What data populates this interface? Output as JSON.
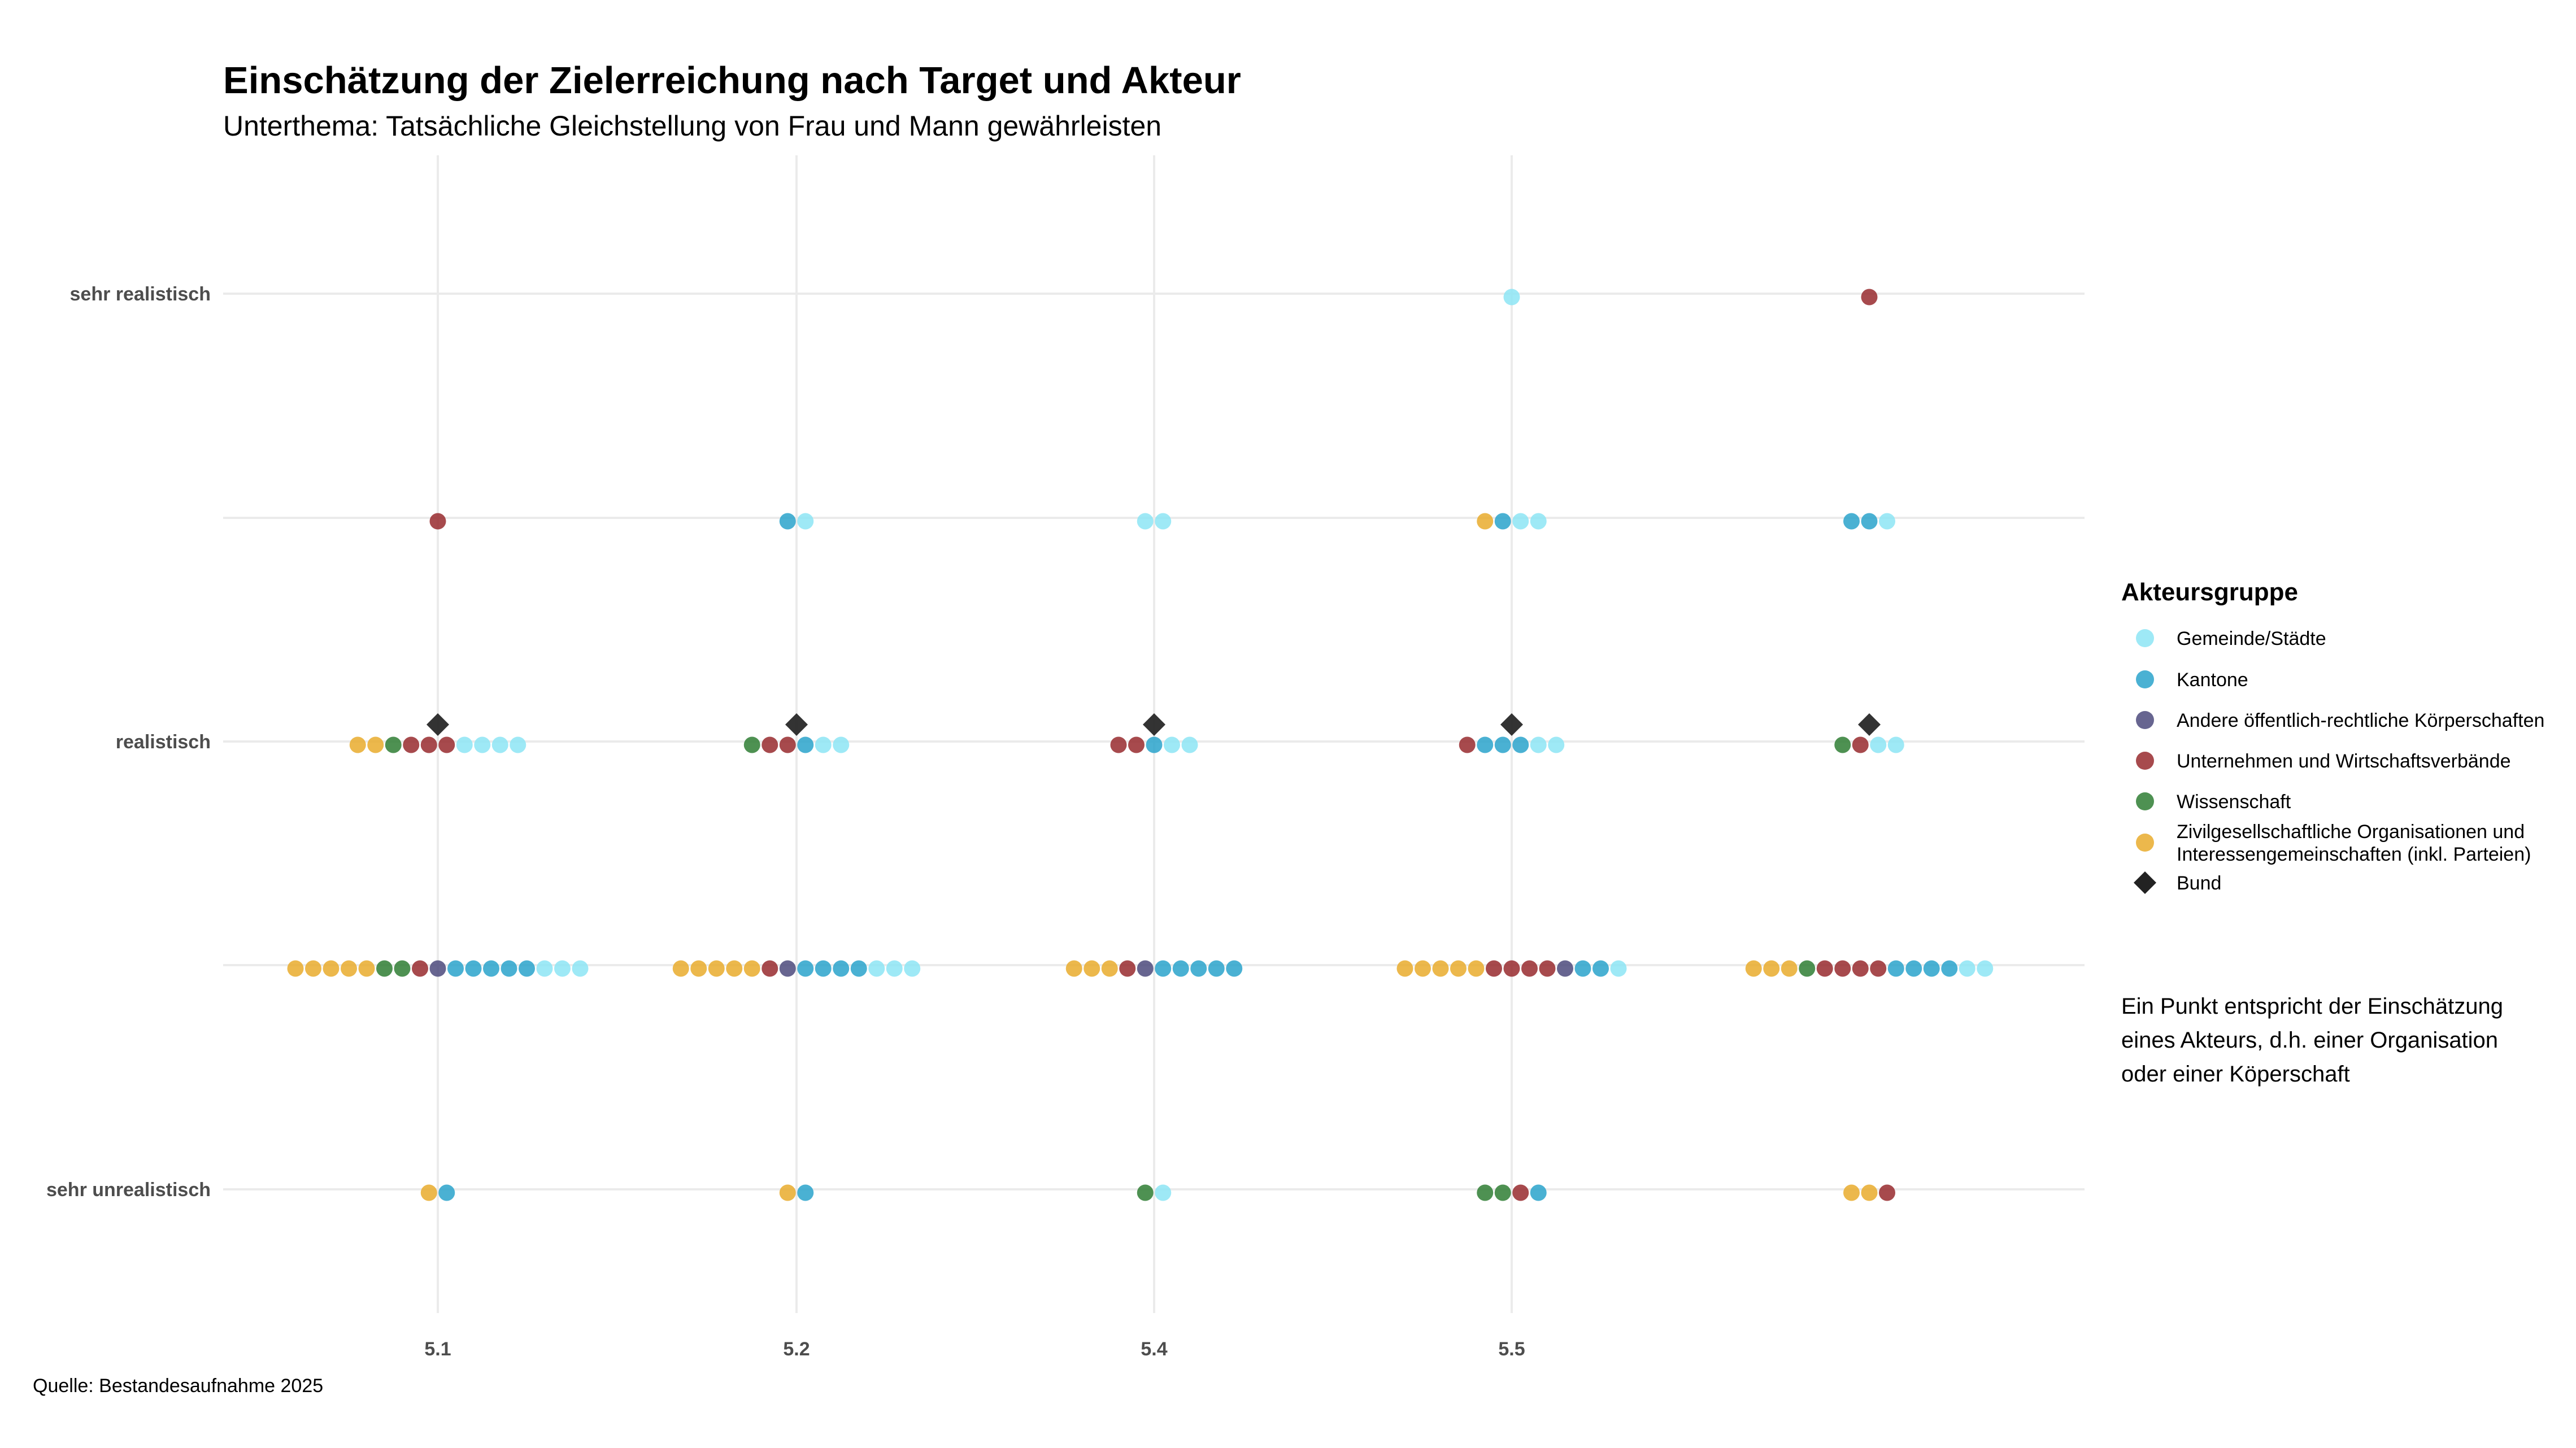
{
  "chart_data": {
    "type": "scatter",
    "title": "Einschätzung der Zielerreichung nach Target und Akteur",
    "subtitle": "Unterthema: Tatsächliche Gleichstellung von Frau und Mann gewährleisten",
    "caption": "Quelle: Bestandesaufnahme 2025",
    "note_lines": [
      "Ein Punkt entspricht der Einschätzung",
      "eines Akteurs, d.h. einer Organisation",
      "oder einer Köperschaft"
    ],
    "x_categories": [
      "5.1",
      "5.2",
      "5.4",
      "5.5",
      ""
    ],
    "y_levels": [
      "sehr realistisch",
      "",
      "realistisch",
      "",
      "sehr unrealistisch"
    ],
    "legend_title": "Akteursgruppe",
    "groups": [
      {
        "name": "Gemeinde/Städte",
        "color": "#8de5f5",
        "shape": "circle"
      },
      {
        "name": "Kantone",
        "color": "#2aa3cb",
        "shape": "circle"
      },
      {
        "name": "Andere öffentlich-rechtliche Körperschaften",
        "color": "#4c4a7c",
        "shape": "circle"
      },
      {
        "name": "Unternehmen und Wirtschaftsverbände",
        "color": "#982a2e",
        "shape": "circle"
      },
      {
        "name": "Wissenschaft",
        "color": "#2f7e34",
        "shape": "circle"
      },
      {
        "name": "Zivilgesellschaftliche Organisationen und Interessengemeinschaften (inkl. Parteien)",
        "color": "#e9ac2d",
        "shape": "circle"
      },
      {
        "name": "Bund",
        "color": "#222222",
        "shape": "diamond"
      }
    ],
    "rows": [
      {
        "x": 0,
        "y": 0,
        "dots": []
      },
      {
        "x": 1,
        "y": 0,
        "dots": []
      },
      {
        "x": 2,
        "y": 0,
        "dots": []
      },
      {
        "x": 3,
        "y": 0,
        "dots": [
          "Gemeinde/Städte"
        ]
      },
      {
        "x": 4,
        "y": 0,
        "dots": [
          "Unternehmen und Wirtschaftsverbände"
        ]
      },
      {
        "x": 0,
        "y": 1,
        "dots": [
          "Unternehmen und Wirtschaftsverbände"
        ]
      },
      {
        "x": 1,
        "y": 1,
        "dots": [
          "Kantone",
          "Gemeinde/Städte"
        ]
      },
      {
        "x": 2,
        "y": 1,
        "dots": [
          "Gemeinde/Städte",
          "Gemeinde/Städte"
        ]
      },
      {
        "x": 3,
        "y": 1,
        "dots": [
          "Zivilgesellschaftliche Organisationen und Interessengemeinschaften (inkl. Parteien)",
          "Kantone",
          "Gemeinde/Städte",
          "Gemeinde/Städte"
        ]
      },
      {
        "x": 4,
        "y": 1,
        "dots": [
          "Kantone",
          "Kantone",
          "Gemeinde/Städte"
        ]
      },
      {
        "x": 0,
        "y": 2,
        "dots": [
          "Zivilgesellschaftliche Organisationen und Interessengemeinschaften (inkl. Parteien)",
          "Zivilgesellschaftliche Organisationen und Interessengemeinschaften (inkl. Parteien)",
          "Wissenschaft",
          "Unternehmen und Wirtschaftsverbände",
          "Unternehmen und Wirtschaftsverbände",
          "Unternehmen und Wirtschaftsverbände",
          "Gemeinde/Städte",
          "Gemeinde/Städte",
          "Gemeinde/Städte",
          "Gemeinde/Städte"
        ]
      },
      {
        "x": 1,
        "y": 2,
        "dots": [
          "Wissenschaft",
          "Unternehmen und Wirtschaftsverbände",
          "Unternehmen und Wirtschaftsverbände",
          "Kantone",
          "Gemeinde/Städte",
          "Gemeinde/Städte"
        ]
      },
      {
        "x": 2,
        "y": 2,
        "dots": [
          "Unternehmen und Wirtschaftsverbände",
          "Unternehmen und Wirtschaftsverbände",
          "Kantone",
          "Gemeinde/Städte",
          "Gemeinde/Städte"
        ]
      },
      {
        "x": 3,
        "y": 2,
        "dots": [
          "Unternehmen und Wirtschaftsverbände",
          "Kantone",
          "Kantone",
          "Kantone",
          "Gemeinde/Städte",
          "Gemeinde/Städte"
        ]
      },
      {
        "x": 4,
        "y": 2,
        "dots": [
          "Wissenschaft",
          "Unternehmen und Wirtschaftsverbände",
          "Gemeinde/Städte",
          "Gemeinde/Städte"
        ]
      },
      {
        "x": 0,
        "y": 3,
        "dots": [
          "Zivilgesellschaftliche Organisationen und Interessengemeinschaften (inkl. Parteien)",
          "Zivilgesellschaftliche Organisationen und Interessengemeinschaften (inkl. Parteien)",
          "Zivilgesellschaftliche Organisationen und Interessengemeinschaften (inkl. Parteien)",
          "Zivilgesellschaftliche Organisationen und Interessengemeinschaften (inkl. Parteien)",
          "Zivilgesellschaftliche Organisationen und Interessengemeinschaften (inkl. Parteien)",
          "Wissenschaft",
          "Wissenschaft",
          "Unternehmen und Wirtschaftsverbände",
          "Andere öffentlich-rechtliche Körperschaften",
          "Kantone",
          "Kantone",
          "Kantone",
          "Kantone",
          "Kantone",
          "Gemeinde/Städte",
          "Gemeinde/Städte",
          "Gemeinde/Städte"
        ]
      },
      {
        "x": 1,
        "y": 3,
        "dots": [
          "Zivilgesellschaftliche Organisationen und Interessengemeinschaften (inkl. Parteien)",
          "Zivilgesellschaftliche Organisationen und Interessengemeinschaften (inkl. Parteien)",
          "Zivilgesellschaftliche Organisationen und Interessengemeinschaften (inkl. Parteien)",
          "Zivilgesellschaftliche Organisationen und Interessengemeinschaften (inkl. Parteien)",
          "Zivilgesellschaftliche Organisationen und Interessengemeinschaften (inkl. Parteien)",
          "Unternehmen und Wirtschaftsverbände",
          "Andere öffentlich-rechtliche Körperschaften",
          "Kantone",
          "Kantone",
          "Kantone",
          "Kantone",
          "Gemeinde/Städte",
          "Gemeinde/Städte",
          "Gemeinde/Städte"
        ]
      },
      {
        "x": 2,
        "y": 3,
        "dots": [
          "Zivilgesellschaftliche Organisationen und Interessengemeinschaften (inkl. Parteien)",
          "Zivilgesellschaftliche Organisationen und Interessengemeinschaften (inkl. Parteien)",
          "Zivilgesellschaftliche Organisationen und Interessengemeinschaften (inkl. Parteien)",
          "Unternehmen und Wirtschaftsverbände",
          "Andere öffentlich-rechtliche Körperschaften",
          "Kantone",
          "Kantone",
          "Kantone",
          "Kantone",
          "Kantone"
        ]
      },
      {
        "x": 3,
        "y": 3,
        "dots": [
          "Zivilgesellschaftliche Organisationen und Interessengemeinschaften (inkl. Parteien)",
          "Zivilgesellschaftliche Organisationen und Interessengemeinschaften (inkl. Parteien)",
          "Zivilgesellschaftliche Organisationen und Interessengemeinschaften (inkl. Parteien)",
          "Zivilgesellschaftliche Organisationen und Interessengemeinschaften (inkl. Parteien)",
          "Zivilgesellschaftliche Organisationen und Interessengemeinschaften (inkl. Parteien)",
          "Unternehmen und Wirtschaftsverbände",
          "Unternehmen und Wirtschaftsverbände",
          "Unternehmen und Wirtschaftsverbände",
          "Unternehmen und Wirtschaftsverbände",
          "Andere öffentlich-rechtliche Körperschaften",
          "Kantone",
          "Kantone",
          "Gemeinde/Städte"
        ]
      },
      {
        "x": 4,
        "y": 3,
        "dots": [
          "Zivilgesellschaftliche Organisationen und Interessengemeinschaften (inkl. Parteien)",
          "Zivilgesellschaftliche Organisationen und Interessengemeinschaften (inkl. Parteien)",
          "Zivilgesellschaftliche Organisationen und Interessengemeinschaften (inkl. Parteien)",
          "Wissenschaft",
          "Unternehmen und Wirtschaftsverbände",
          "Unternehmen und Wirtschaftsverbände",
          "Unternehmen und Wirtschaftsverbände",
          "Unternehmen und Wirtschaftsverbände",
          "Kantone",
          "Kantone",
          "Kantone",
          "Kantone",
          "Gemeinde/Städte",
          "Gemeinde/Städte"
        ]
      },
      {
        "x": 0,
        "y": 4,
        "dots": [
          "Zivilgesellschaftliche Organisationen und Interessengemeinschaften (inkl. Parteien)",
          "Kantone"
        ]
      },
      {
        "x": 1,
        "y": 4,
        "dots": [
          "Zivilgesellschaftliche Organisationen und Interessengemeinschaften (inkl. Parteien)",
          "Kantone"
        ]
      },
      {
        "x": 2,
        "y": 4,
        "dots": [
          "Wissenschaft",
          "Gemeinde/Städte"
        ]
      },
      {
        "x": 3,
        "y": 4,
        "dots": [
          "Wissenschaft",
          "Wissenschaft",
          "Unternehmen und Wirtschaftsverbände",
          "Kantone"
        ]
      },
      {
        "x": 4,
        "y": 4,
        "dots": [
          "Zivilgesellschaftliche Organisationen und Interessengemeinschaften (inkl. Parteien)",
          "Zivilgesellschaftliche Organisationen und Interessengemeinschaften (inkl. Parteien)",
          "Unternehmen und Wirtschaftsverbände"
        ]
      }
    ],
    "bund": [
      {
        "x": 0,
        "y": 2
      },
      {
        "x": 1,
        "y": 2
      },
      {
        "x": 2,
        "y": 2
      },
      {
        "x": 3,
        "y": 2
      },
      {
        "x": 4,
        "y": 2
      }
    ]
  }
}
